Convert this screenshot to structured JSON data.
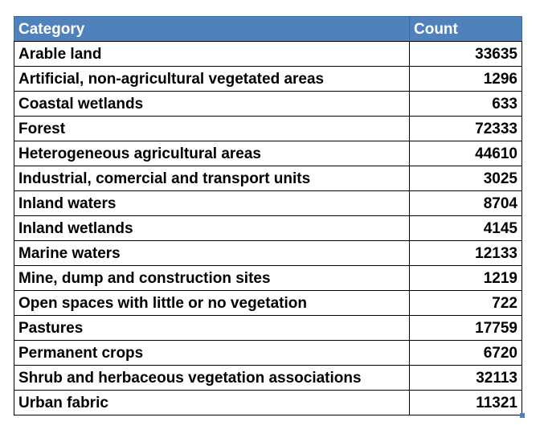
{
  "table": {
    "headers": [
      "Category",
      "Count"
    ],
    "rows": [
      [
        "Arable land",
        "33635"
      ],
      [
        "Artificial, non-agricultural vegetated areas",
        "1296"
      ],
      [
        "Coastal wetlands",
        "633"
      ],
      [
        "Forest",
        "72333"
      ],
      [
        "Heterogeneous agricultural areas",
        "44610"
      ],
      [
        "Industrial, comercial and transport units",
        "3025"
      ],
      [
        "Inland waters",
        "8704"
      ],
      [
        "Inland wetlands",
        "4145"
      ],
      [
        "Marine waters",
        "12133"
      ],
      [
        "Mine, dump and construction sites",
        "1219"
      ],
      [
        "Open spaces with little or no vegetation",
        "722"
      ],
      [
        "Pastures",
        "17759"
      ],
      [
        "Permanent crops",
        "6720"
      ],
      [
        "Shrub and herbaceous vegetation associations",
        "32113"
      ],
      [
        "Urban fabric",
        "11321"
      ]
    ]
  },
  "colors": {
    "header_background": "#4f81bd",
    "header_text": "#ffffff",
    "border": "#000000"
  }
}
